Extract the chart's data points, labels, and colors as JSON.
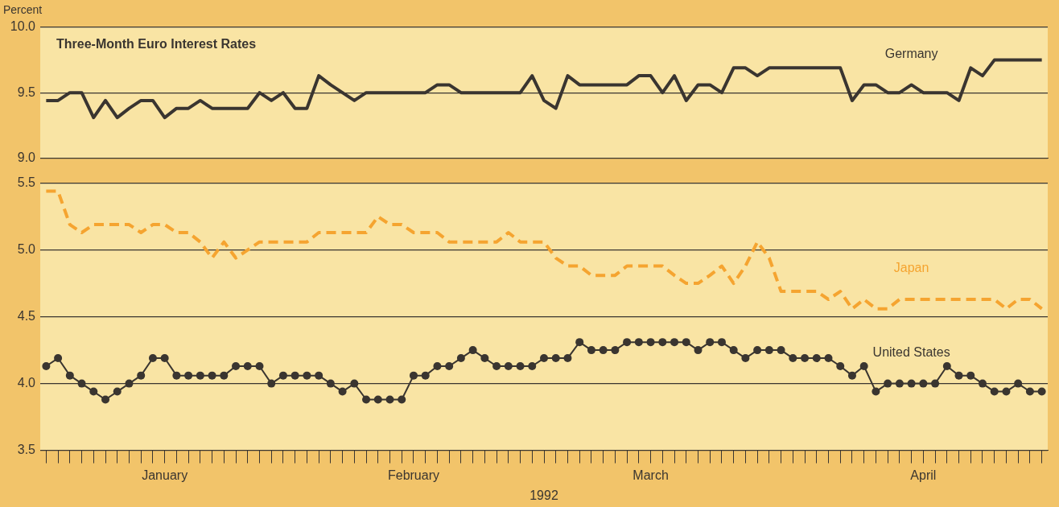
{
  "chart_data": [
    {
      "type": "line",
      "title": "Three-Month Euro Interest Rates",
      "ylabel": "Percent",
      "categories": [
        null,
        null,
        null,
        null,
        null,
        null,
        null,
        null,
        null,
        null,
        null,
        null,
        null,
        null,
        null,
        null,
        null,
        null,
        null,
        null,
        null,
        null,
        null,
        null,
        null,
        null,
        null,
        null,
        null,
        null,
        null,
        null,
        null,
        null,
        null,
        null,
        null,
        null,
        null,
        null,
        null,
        null,
        null,
        null,
        null,
        null,
        null,
        null,
        null,
        null,
        null,
        null,
        null,
        null,
        null,
        null,
        null,
        null,
        null,
        null,
        null,
        null,
        null,
        null,
        null,
        null,
        null,
        null,
        null,
        null,
        null,
        null,
        null,
        null,
        null,
        null,
        null,
        null,
        null,
        null,
        null,
        null,
        null,
        null,
        null
      ],
      "series": [
        {
          "name": "Germany",
          "color": "#3a3530",
          "line_style": "solid",
          "marker": "none",
          "values": [
            9.44,
            9.44,
            9.5,
            9.5,
            9.31,
            9.44,
            9.31,
            9.38,
            9.44,
            9.44,
            9.31,
            9.38,
            9.38,
            9.44,
            9.38,
            9.38,
            9.38,
            9.38,
            9.5,
            9.44,
            9.5,
            9.38,
            9.38,
            9.63,
            9.56,
            9.5,
            9.44,
            9.5,
            9.5,
            9.5,
            9.5,
            9.5,
            9.5,
            9.56,
            9.56,
            9.5,
            9.5,
            9.5,
            9.5,
            9.5,
            9.5,
            9.63,
            9.44,
            9.38,
            9.63,
            9.56,
            9.56,
            9.56,
            9.56,
            9.56,
            9.63,
            9.63,
            9.5,
            9.63,
            9.44,
            9.56,
            9.56,
            9.5,
            9.69,
            9.69,
            9.63,
            9.69,
            9.69,
            9.69,
            9.69,
            9.69,
            9.69,
            9.69,
            9.44,
            9.56,
            9.56,
            9.5,
            9.5,
            9.56,
            9.5,
            9.5,
            9.5,
            9.44,
            9.69,
            9.63,
            9.75,
            9.75,
            9.75,
            9.75,
            9.75
          ]
        }
      ],
      "ylim": [
        9.0,
        10.0
      ],
      "yticks": [
        {
          "value": 9,
          "label": "9.0"
        },
        {
          "value": 9.5,
          "label": "9.5"
        },
        {
          "value": 10,
          "label": "10.0"
        }
      ],
      "grid": "y",
      "tick_labels": "y"
    },
    {
      "type": "line",
      "xlabel": "1992",
      "categories": [
        null,
        null,
        null,
        null,
        null,
        null,
        null,
        null,
        null,
        null,
        "January",
        null,
        null,
        null,
        null,
        null,
        null,
        null,
        null,
        null,
        null,
        null,
        null,
        null,
        null,
        null,
        null,
        null,
        null,
        null,
        null,
        "February",
        null,
        null,
        null,
        null,
        null,
        null,
        null,
        null,
        null,
        null,
        null,
        null,
        null,
        null,
        null,
        null,
        null,
        null,
        null,
        "March",
        null,
        null,
        null,
        null,
        null,
        null,
        null,
        null,
        null,
        null,
        null,
        null,
        null,
        null,
        null,
        null,
        null,
        null,
        null,
        null,
        null,
        null,
        "April",
        null,
        null,
        null,
        null,
        null,
        null,
        null,
        null,
        null,
        null
      ],
      "series": [
        {
          "name": "Japan",
          "color": "#f5a430",
          "line_style": "dashed",
          "marker": "none",
          "values": [
            5.44,
            5.44,
            5.19,
            5.13,
            5.19,
            5.19,
            5.19,
            5.19,
            5.13,
            5.19,
            5.19,
            5.13,
            5.13,
            5.06,
            4.94,
            5.06,
            4.94,
            5.0,
            5.06,
            5.06,
            5.06,
            5.06,
            5.06,
            5.13,
            5.13,
            5.13,
            5.13,
            5.13,
            5.25,
            5.19,
            5.19,
            5.13,
            5.13,
            5.13,
            5.06,
            5.06,
            5.06,
            5.06,
            5.06,
            5.13,
            5.06,
            5.06,
            5.06,
            4.94,
            4.88,
            4.88,
            4.81,
            4.81,
            4.81,
            4.88,
            4.88,
            4.88,
            4.88,
            4.81,
            4.75,
            4.75,
            4.81,
            4.88,
            4.75,
            4.88,
            5.06,
            4.94,
            4.69,
            4.69,
            4.69,
            4.69,
            4.63,
            4.69,
            4.56,
            4.63,
            4.56,
            4.56,
            4.63,
            4.63,
            4.63,
            4.63,
            4.63,
            4.63,
            4.63,
            4.63,
            4.63,
            4.56,
            4.63,
            4.63,
            4.56
          ]
        },
        {
          "name": "United States",
          "color": "#3a3530",
          "line_style": "solid",
          "marker": "circle",
          "values": [
            4.13,
            4.19,
            4.06,
            4.0,
            3.94,
            3.88,
            3.94,
            4.0,
            4.06,
            4.19,
            4.19,
            4.06,
            4.06,
            4.06,
            4.06,
            4.06,
            4.13,
            4.13,
            4.13,
            4.0,
            4.06,
            4.06,
            4.06,
            4.06,
            4.0,
            3.94,
            4.0,
            3.88,
            3.88,
            3.88,
            3.88,
            4.06,
            4.06,
            4.13,
            4.13,
            4.19,
            4.25,
            4.19,
            4.13,
            4.13,
            4.13,
            4.13,
            4.19,
            4.19,
            4.19,
            4.31,
            4.25,
            4.25,
            4.25,
            4.31,
            4.31,
            4.31,
            4.31,
            4.31,
            4.31,
            4.25,
            4.31,
            4.31,
            4.25,
            4.19,
            4.25,
            4.25,
            4.25,
            4.19,
            4.19,
            4.19,
            4.19,
            4.13,
            4.06,
            4.13,
            3.94,
            4.0,
            4.0,
            4.0,
            4.0,
            4.0,
            4.13,
            4.06,
            4.06,
            4.0,
            3.94,
            3.94,
            4.0,
            3.94,
            3.94
          ]
        }
      ],
      "ylim": [
        3.5,
        5.5
      ],
      "yticks": [
        {
          "value": 3.5,
          "label": "3.5"
        },
        {
          "value": 4,
          "label": "4.0"
        },
        {
          "value": 4.5,
          "label": "4.5"
        },
        {
          "value": 5,
          "label": "5.0"
        },
        {
          "value": 5.5,
          "label": "5.5"
        }
      ],
      "grid": "y"
    }
  ]
}
